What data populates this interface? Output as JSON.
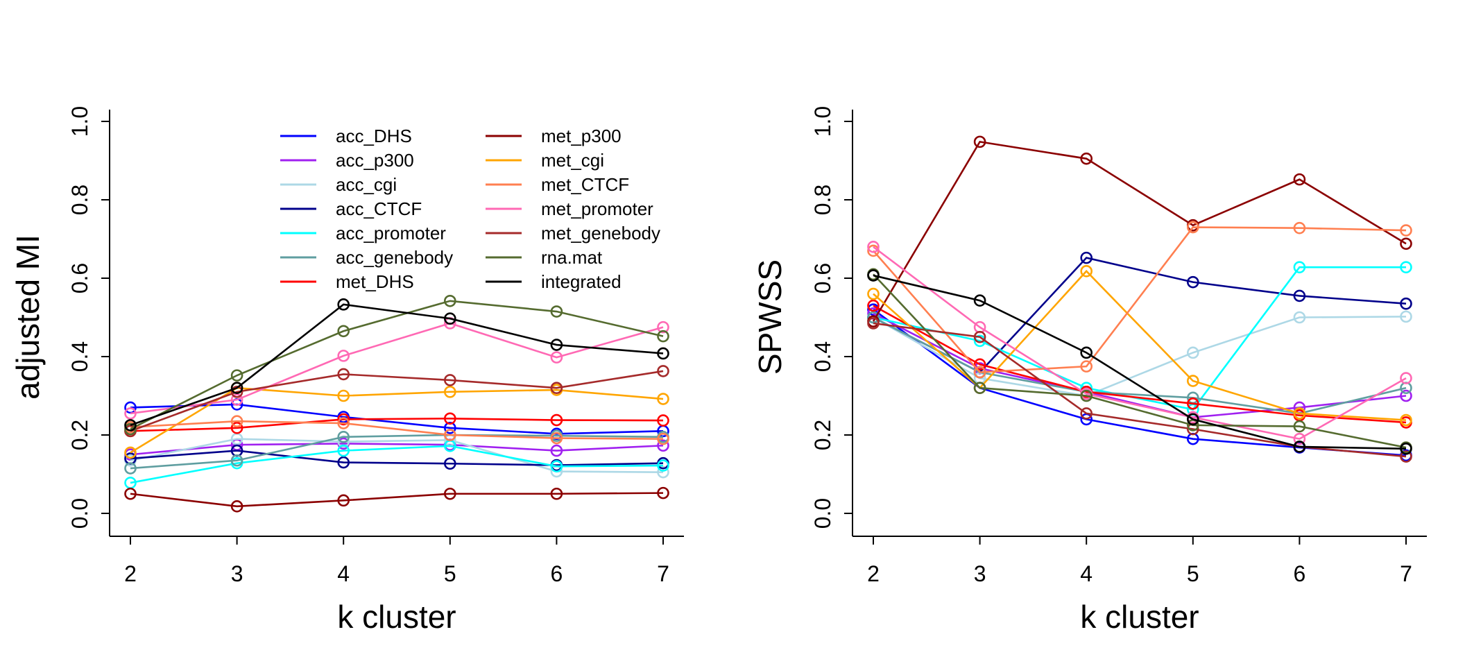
{
  "chart_data": [
    {
      "type": "line",
      "title": "",
      "xlabel": "k cluster",
      "ylabel": "adjusted MI",
      "x": [
        2,
        3,
        4,
        5,
        6,
        7
      ],
      "xticks": [
        "2",
        "3",
        "4",
        "5",
        "6",
        "7"
      ],
      "ylim": [
        0,
        1
      ],
      "yticks": [
        "0.0",
        "0.2",
        "0.4",
        "0.6",
        "0.8",
        "1.0"
      ],
      "grid": false,
      "legend_position": "top",
      "legend_columns": 2,
      "series": [
        {
          "name": "acc_DHS",
          "color": "#0000ff",
          "values": [
            0.27,
            0.278,
            0.246,
            0.218,
            0.203,
            0.21
          ]
        },
        {
          "name": "acc_p300",
          "color": "#a020f0",
          "values": [
            0.15,
            0.175,
            0.178,
            0.175,
            0.16,
            0.173
          ]
        },
        {
          "name": "acc_cgi",
          "color": "#add8e6",
          "values": [
            0.135,
            0.19,
            0.183,
            0.187,
            0.107,
            0.105
          ]
        },
        {
          "name": "acc_CTCF",
          "color": "#00008b",
          "values": [
            0.14,
            0.16,
            0.13,
            0.127,
            0.123,
            0.128
          ]
        },
        {
          "name": "acc_promoter",
          "color": "#00ffff",
          "values": [
            0.078,
            0.128,
            0.16,
            0.172,
            0.12,
            0.122
          ]
        },
        {
          "name": "acc_genebody",
          "color": "#5f9ea0",
          "values": [
            0.115,
            0.135,
            0.195,
            0.2,
            0.198,
            0.195
          ]
        },
        {
          "name": "met_DHS",
          "color": "#ff0000",
          "values": [
            0.21,
            0.218,
            0.24,
            0.242,
            0.238,
            0.237
          ]
        },
        {
          "name": "met_p300",
          "color": "#8b0000",
          "values": [
            0.05,
            0.018,
            0.033,
            0.05,
            0.05,
            0.052
          ]
        },
        {
          "name": "met_cgi",
          "color": "#ffa500",
          "values": [
            0.155,
            0.32,
            0.3,
            0.31,
            0.315,
            0.292
          ]
        },
        {
          "name": "met_CTCF",
          "color": "#ff7f50",
          "values": [
            0.22,
            0.235,
            0.23,
            0.2,
            0.192,
            0.19
          ]
        },
        {
          "name": "met_promoter",
          "color": "#ff69b4",
          "values": [
            0.255,
            0.29,
            0.402,
            0.485,
            0.398,
            0.475
          ]
        },
        {
          "name": "met_genebody",
          "color": "#a52a2a",
          "values": [
            0.21,
            0.31,
            0.355,
            0.34,
            0.32,
            0.363
          ]
        },
        {
          "name": "rna.mat",
          "color": "#556b2f",
          "values": [
            0.215,
            0.352,
            0.465,
            0.542,
            0.515,
            0.452
          ]
        },
        {
          "name": "integrated",
          "color": "#000000",
          "values": [
            0.225,
            0.32,
            0.533,
            0.497,
            0.43,
            0.408
          ]
        }
      ]
    },
    {
      "type": "line",
      "title": "",
      "xlabel": "k cluster",
      "ylabel": "SPWSS",
      "x": [
        2,
        3,
        4,
        5,
        6,
        7
      ],
      "xticks": [
        "2",
        "3",
        "4",
        "5",
        "6",
        "7"
      ],
      "ylim": [
        0,
        1
      ],
      "yticks": [
        "0.0",
        "0.2",
        "0.4",
        "0.6",
        "0.8",
        "1.0"
      ],
      "grid": false,
      "series": [
        {
          "color": "#0000ff",
          "values": [
            0.52,
            0.32,
            0.24,
            0.19,
            0.168,
            0.148
          ]
        },
        {
          "color": "#a020f0",
          "values": [
            0.51,
            0.37,
            0.31,
            0.245,
            0.27,
            0.3
          ]
        },
        {
          "color": "#add8e6",
          "values": [
            0.5,
            0.345,
            0.3,
            0.41,
            0.5,
            0.502
          ]
        },
        {
          "color": "#00008b",
          "values": [
            0.5,
            0.36,
            0.652,
            0.59,
            0.555,
            0.535
          ]
        },
        {
          "color": "#00ffff",
          "values": [
            0.5,
            0.44,
            0.32,
            0.265,
            0.628,
            0.628
          ]
        },
        {
          "color": "#5f9ea0",
          "values": [
            0.5,
            0.36,
            0.31,
            0.295,
            0.255,
            0.32
          ]
        },
        {
          "color": "#ff0000",
          "values": [
            0.53,
            0.38,
            0.31,
            0.28,
            0.25,
            0.232
          ]
        },
        {
          "color": "#8b0000",
          "values": [
            0.49,
            0.948,
            0.905,
            0.735,
            0.852,
            0.688
          ]
        },
        {
          "color": "#ffa500",
          "values": [
            0.56,
            0.32,
            0.618,
            0.338,
            0.255,
            0.238
          ]
        },
        {
          "color": "#ff7f50",
          "values": [
            0.67,
            0.36,
            0.375,
            0.73,
            0.728,
            0.722
          ]
        },
        {
          "color": "#ff69b4",
          "values": [
            0.68,
            0.475,
            0.305,
            0.245,
            0.19,
            0.345
          ]
        },
        {
          "color": "#a52a2a",
          "values": [
            0.485,
            0.45,
            0.255,
            0.215,
            0.17,
            0.145
          ]
        },
        {
          "color": "#556b2f",
          "values": [
            0.61,
            0.32,
            0.3,
            0.225,
            0.222,
            0.168
          ]
        },
        {
          "color": "#000000",
          "values": [
            0.607,
            0.543,
            0.41,
            0.24,
            0.17,
            0.165
          ]
        }
      ]
    }
  ]
}
